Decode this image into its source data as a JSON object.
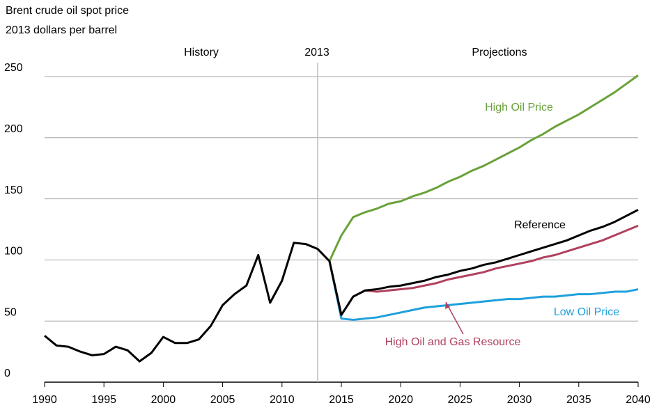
{
  "chart_data": {
    "type": "line",
    "title": "Brent crude oil spot price",
    "subtitle": "2013 dollars per barrel",
    "annotations": [
      "History",
      "Projections"
    ],
    "marker": {
      "x": 2013,
      "label": "2013"
    },
    "x": [
      1990,
      1991,
      1992,
      1993,
      1994,
      1995,
      1996,
      1997,
      1998,
      1999,
      2000,
      2001,
      2002,
      2003,
      2004,
      2005,
      2006,
      2007,
      2008,
      2009,
      2010,
      2011,
      2012,
      2013,
      2014,
      2015,
      2016,
      2017,
      2018,
      2019,
      2020,
      2021,
      2022,
      2023,
      2024,
      2025,
      2026,
      2027,
      2028,
      2029,
      2030,
      2031,
      2032,
      2033,
      2034,
      2035,
      2036,
      2037,
      2038,
      2039,
      2040
    ],
    "series": [
      {
        "name": "High Oil Price",
        "color": "#6aa13a",
        "values": [
          null,
          null,
          null,
          null,
          null,
          null,
          null,
          null,
          null,
          null,
          null,
          null,
          null,
          null,
          null,
          null,
          null,
          null,
          null,
          null,
          null,
          null,
          null,
          null,
          99,
          120,
          135,
          139,
          142,
          146,
          148,
          152,
          155,
          159,
          164,
          168,
          173,
          177,
          182,
          187,
          192,
          198,
          203,
          209,
          214,
          219,
          225,
          231,
          237,
          244,
          251
        ]
      },
      {
        "name": "Low Oil Price",
        "color": "#1ea0dc",
        "values": [
          null,
          null,
          null,
          null,
          null,
          null,
          null,
          null,
          null,
          null,
          null,
          null,
          null,
          null,
          null,
          null,
          null,
          null,
          null,
          null,
          null,
          null,
          null,
          null,
          99,
          52,
          51,
          52,
          53,
          55,
          57,
          59,
          61,
          62,
          63,
          64,
          65,
          66,
          67,
          68,
          68,
          69,
          70,
          70,
          71,
          72,
          72,
          73,
          74,
          74,
          76
        ]
      },
      {
        "name": "High Oil and Gas Resource",
        "color": "#b0415e",
        "values": [
          null,
          null,
          null,
          null,
          null,
          null,
          null,
          null,
          null,
          null,
          null,
          null,
          null,
          null,
          null,
          null,
          null,
          null,
          null,
          null,
          null,
          null,
          null,
          null,
          99,
          55,
          70,
          75,
          74,
          75,
          76,
          77,
          79,
          81,
          84,
          86,
          88,
          90,
          93,
          95,
          97,
          99,
          102,
          104,
          107,
          110,
          113,
          116,
          120,
          124,
          128
        ]
      },
      {
        "name": "Reference",
        "color": "#000000",
        "values": [
          38,
          30,
          29,
          25,
          22,
          23,
          29,
          26,
          17,
          24,
          37,
          32,
          32,
          35,
          46,
          63,
          72,
          79,
          104,
          65,
          83,
          114,
          113,
          109,
          99,
          55,
          70,
          75,
          76,
          78,
          79,
          81,
          83,
          86,
          88,
          91,
          93,
          96,
          98,
          101,
          104,
          107,
          110,
          113,
          116,
          120,
          124,
          127,
          131,
          136,
          141
        ]
      }
    ],
    "xlim": [
      1990,
      2040
    ],
    "ylim": [
      0,
      250
    ],
    "xticks": [
      1990,
      1995,
      2000,
      2005,
      2010,
      2015,
      2020,
      2025,
      2030,
      2035,
      2040
    ],
    "yticks": [
      0,
      50,
      100,
      150,
      200,
      250
    ],
    "grid": true
  }
}
